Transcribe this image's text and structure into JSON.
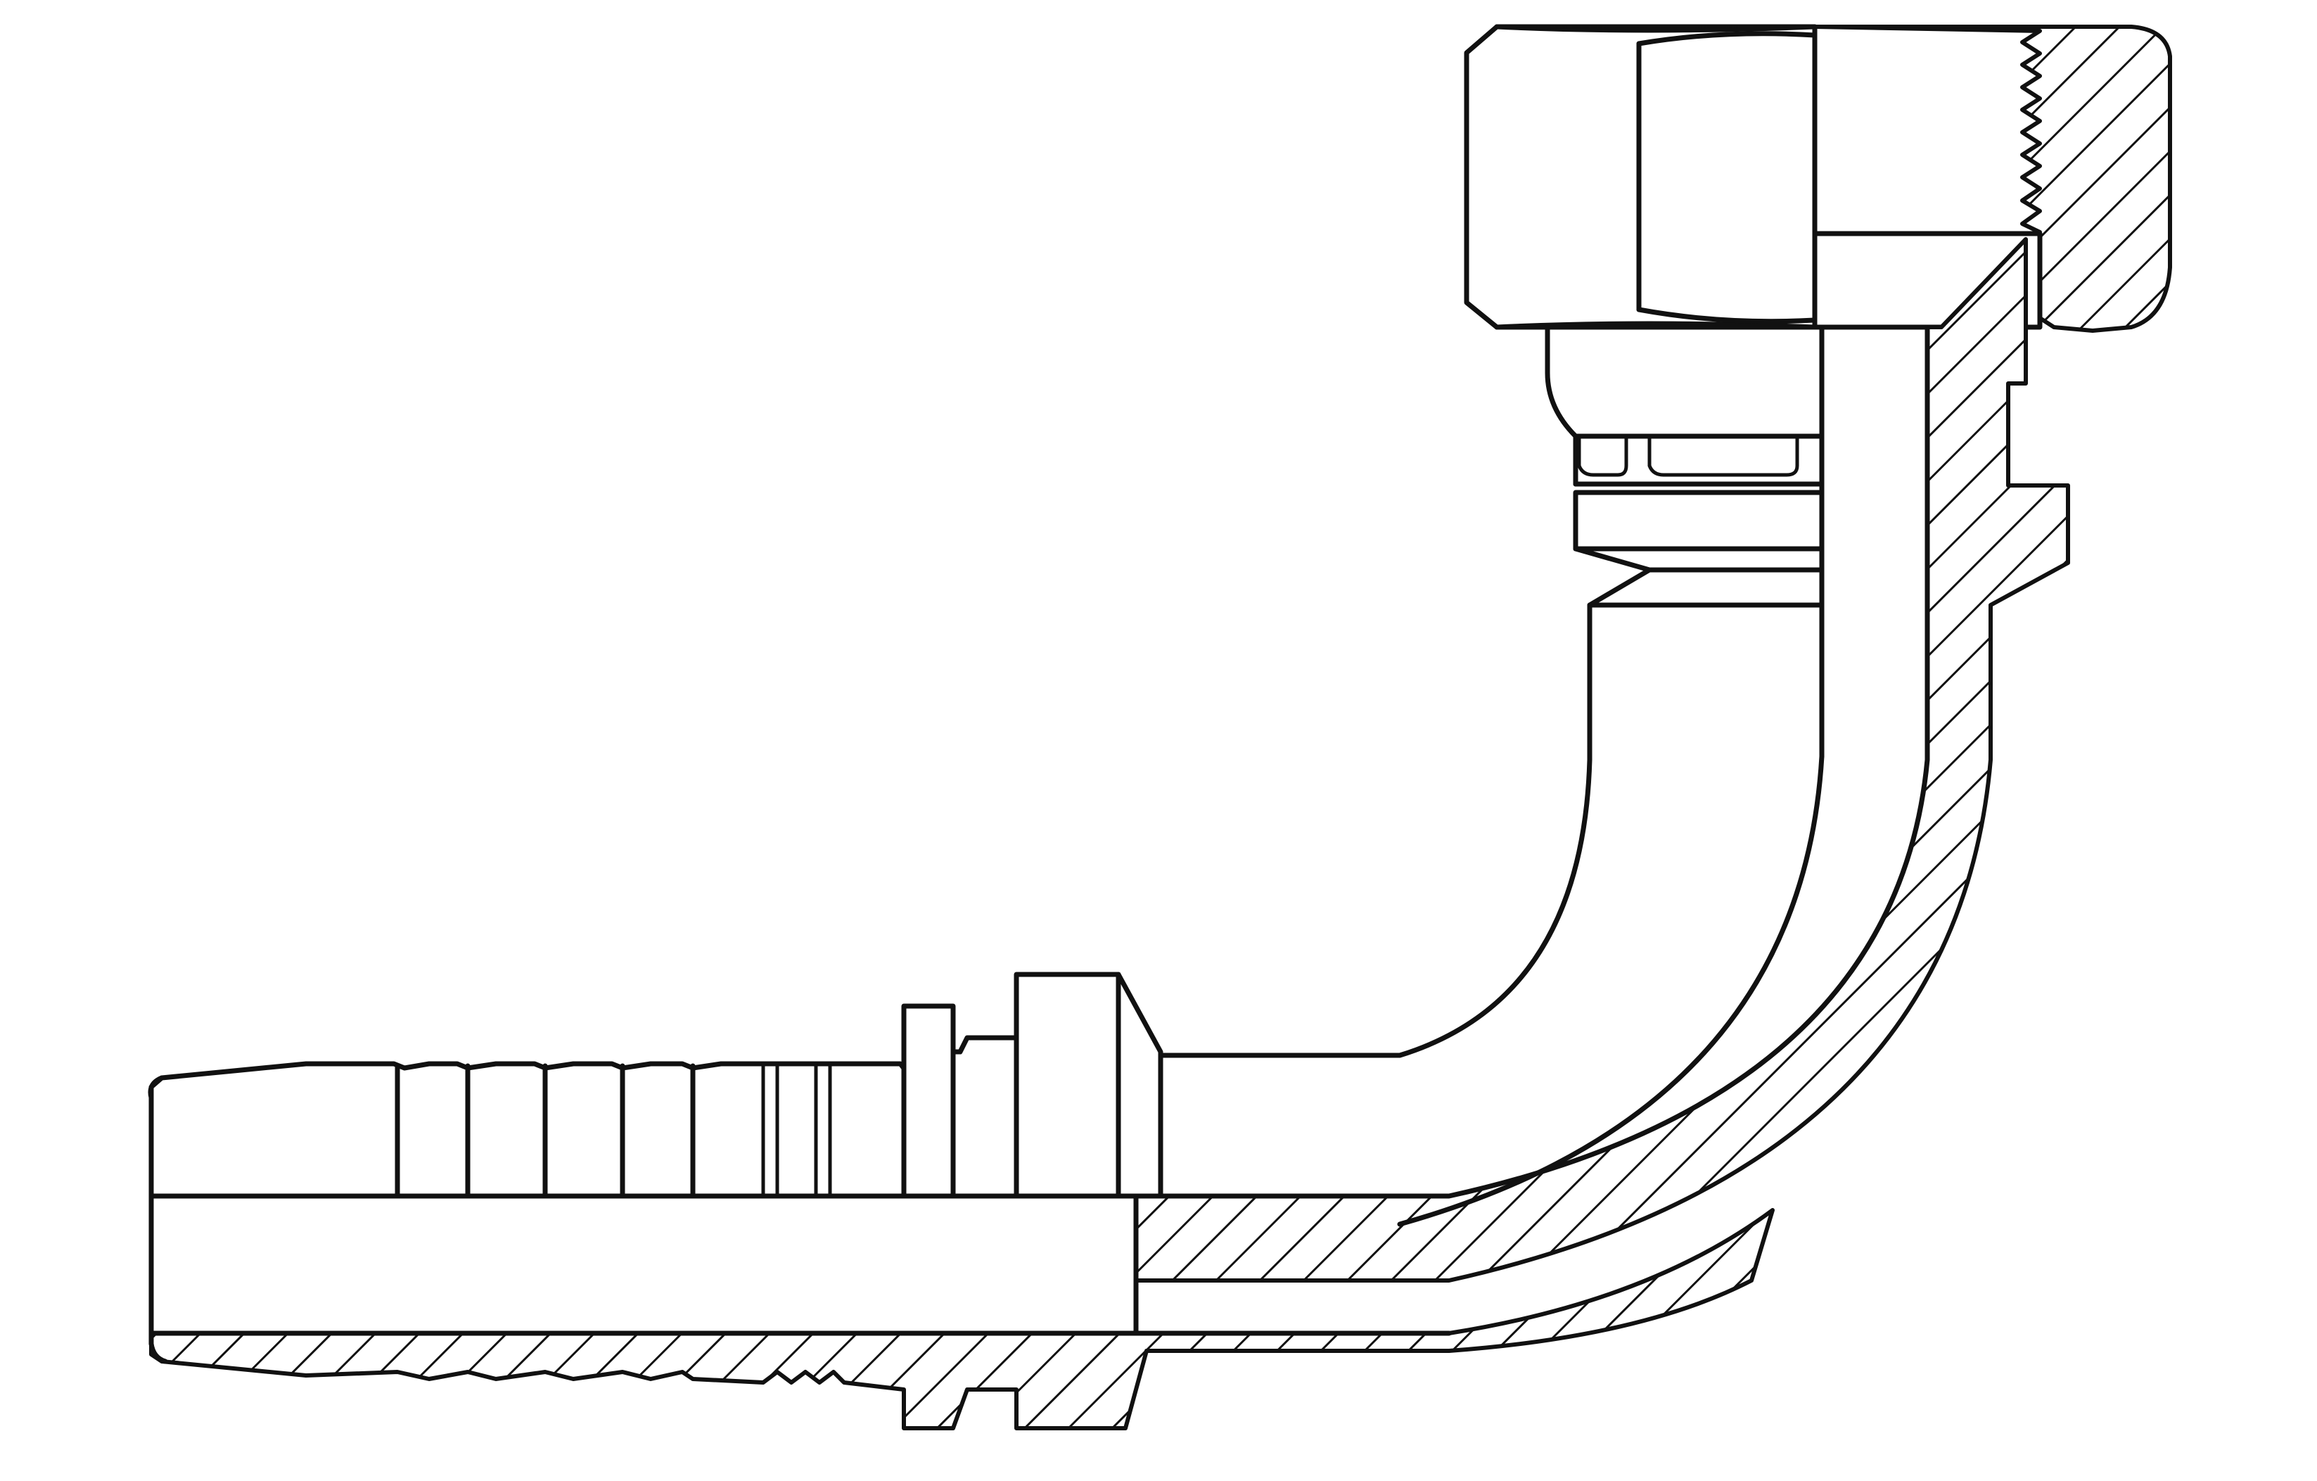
{
  "drawing": {
    "subject": "",
    "colors": {
      "line": "#111111",
      "background": "#ffffff"
    },
    "hatch": "diagonal-45"
  }
}
